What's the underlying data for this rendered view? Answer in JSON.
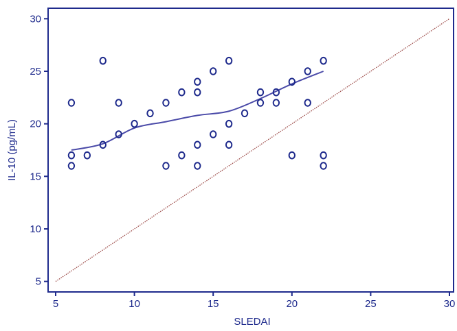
{
  "chart_data": {
    "type": "scatter",
    "title": "",
    "xlabel": "SLEDAI",
    "ylabel": "IL-10 (pg/mL)",
    "xlim": [
      5,
      30
    ],
    "ylim": [
      4,
      31
    ],
    "xticks": [
      5,
      10,
      15,
      20,
      25,
      30
    ],
    "yticks": [
      5,
      10,
      15,
      20,
      25,
      30
    ],
    "xtick_labels": [
      "5",
      "10",
      "15",
      "20",
      "25",
      "30"
    ],
    "ytick_labels": [
      "5",
      "10",
      "15",
      "20",
      "25",
      "30"
    ],
    "grid": false,
    "legend": "none",
    "colors": {
      "axis": "#1e2a8c",
      "points": "#1e2a8c",
      "trend": "#4a4aa8",
      "identity": "#a0524f"
    },
    "points": [
      {
        "x": 6,
        "y": 22
      },
      {
        "x": 6,
        "y": 17
      },
      {
        "x": 6,
        "y": 16
      },
      {
        "x": 7,
        "y": 17
      },
      {
        "x": 8,
        "y": 26
      },
      {
        "x": 8,
        "y": 18
      },
      {
        "x": 9,
        "y": 22
      },
      {
        "x": 9,
        "y": 19
      },
      {
        "x": 10,
        "y": 20
      },
      {
        "x": 11,
        "y": 21
      },
      {
        "x": 12,
        "y": 22
      },
      {
        "x": 12,
        "y": 16
      },
      {
        "x": 13,
        "y": 23
      },
      {
        "x": 13,
        "y": 17
      },
      {
        "x": 14,
        "y": 24
      },
      {
        "x": 14,
        "y": 23
      },
      {
        "x": 14,
        "y": 18
      },
      {
        "x": 14,
        "y": 16
      },
      {
        "x": 15,
        "y": 25
      },
      {
        "x": 15,
        "y": 19
      },
      {
        "x": 16,
        "y": 26
      },
      {
        "x": 16,
        "y": 20
      },
      {
        "x": 16,
        "y": 18
      },
      {
        "x": 17,
        "y": 21
      },
      {
        "x": 18,
        "y": 23
      },
      {
        "x": 18,
        "y": 22
      },
      {
        "x": 19,
        "y": 23
      },
      {
        "x": 19,
        "y": 22
      },
      {
        "x": 20,
        "y": 24
      },
      {
        "x": 20,
        "y": 17
      },
      {
        "x": 21,
        "y": 25
      },
      {
        "x": 21,
        "y": 22
      },
      {
        "x": 22,
        "y": 26
      },
      {
        "x": 22,
        "y": 17
      },
      {
        "x": 22,
        "y": 16
      }
    ],
    "trend_line": [
      {
        "x": 6,
        "y": 17.5
      },
      {
        "x": 8,
        "y": 18.1
      },
      {
        "x": 10,
        "y": 19.6
      },
      {
        "x": 12,
        "y": 20.2
      },
      {
        "x": 14,
        "y": 20.8
      },
      {
        "x": 16,
        "y": 21.2
      },
      {
        "x": 18,
        "y": 22.4
      },
      {
        "x": 20,
        "y": 23.8
      },
      {
        "x": 22,
        "y": 25.0
      }
    ],
    "identity_line": [
      {
        "x": 5,
        "y": 5
      },
      {
        "x": 30,
        "y": 30
      }
    ]
  }
}
